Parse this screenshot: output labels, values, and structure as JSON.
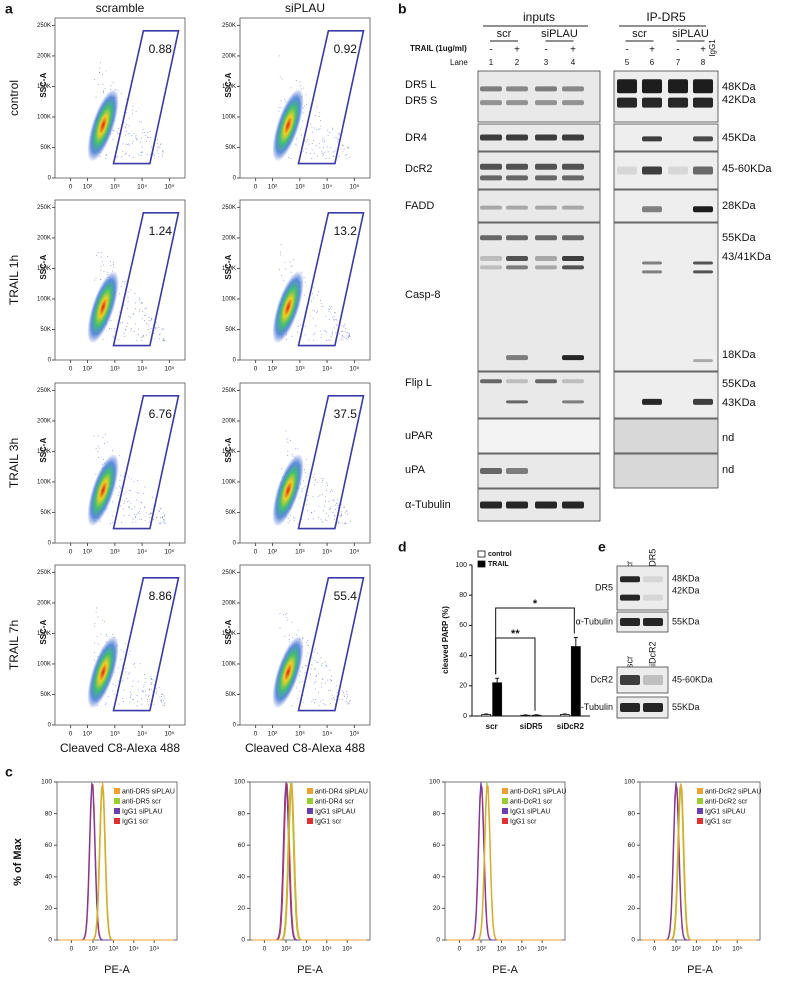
{
  "panel_labels": [
    "a",
    "b",
    "c",
    "d",
    "e"
  ],
  "flow": {
    "columns": [
      "scramble",
      "siPLAU"
    ],
    "rows": [
      "control",
      "TRAIL 1h",
      "TRAIL 3h",
      "TRAIL 7h"
    ],
    "ylabel": "SSC-A",
    "xlabel": "Cleaved C8-Alexa 488",
    "ylim": [
      0,
      262144
    ],
    "yticks": [
      0,
      {
        "value": 50000,
        "label": "50K"
      },
      {
        "value": 100000,
        "label": "100K"
      },
      {
        "value": 150000,
        "label": "150K"
      },
      {
        "value": 200000,
        "label": "200K"
      },
      {
        "value": 250000,
        "label": "250K"
      }
    ],
    "xticks": [
      0,
      {
        "value": 100,
        "label": "10²"
      },
      {
        "value": 1000,
        "label": "10³"
      },
      {
        "value": 10000,
        "label": "10⁴"
      },
      {
        "value": 100000,
        "label": "10⁵"
      }
    ],
    "gates": [
      [
        0.88,
        0.92
      ],
      [
        1.24,
        13.2
      ],
      [
        6.76,
        37.5
      ],
      [
        8.86,
        55.4
      ]
    ]
  },
  "blot_b": {
    "groups": [
      "inputs",
      "IP-DR5"
    ],
    "conditions": [
      "scr",
      "siPLAU",
      "scr",
      "siPLAU"
    ],
    "treatment_label": "TRAIL (1ug/ml)",
    "treatment": [
      "-",
      "+",
      "-",
      "+",
      "-",
      "+",
      "-",
      "+"
    ],
    "lane_label": "Lane",
    "lanes": [
      1,
      2,
      3,
      4,
      5,
      6,
      7,
      8
    ],
    "control_lane": "IgG1",
    "rows": [
      {
        "labels": [
          "DR5 L",
          "DR5 S"
        ],
        "sizes": [
          "48KDa",
          "42KDa"
        ]
      },
      {
        "labels": [
          "DR4"
        ],
        "sizes": [
          "45KDa"
        ]
      },
      {
        "labels": [
          "DcR2"
        ],
        "sizes": [
          "45-60KDa"
        ]
      },
      {
        "labels": [
          "FADD"
        ],
        "sizes": [
          "28KDa"
        ]
      },
      {
        "labels": [
          "Casp-8"
        ],
        "sizes": [
          "55KDa",
          "43/41KDa",
          "18KDa"
        ]
      },
      {
        "labels": [
          "Flip L"
        ],
        "sizes": [
          "55KDa",
          "43KDa"
        ]
      },
      {
        "labels": [
          "uPAR"
        ],
        "sizes": [
          "nd"
        ]
      },
      {
        "labels": [
          "uPA"
        ],
        "sizes": [
          "nd"
        ]
      },
      {
        "labels": [
          "α-Tubulin"
        ],
        "sizes": []
      }
    ]
  },
  "chart_data": {
    "type": "bar",
    "ylabel": "cleaved PARP (%)",
    "categories": [
      "scr",
      "siDR5",
      "siDcR2"
    ],
    "series": [
      {
        "name": "control",
        "color": "#ffffff",
        "values": [
          1,
          0.5,
          1
        ],
        "errors": [
          0.3,
          0.2,
          0.3
        ]
      },
      {
        "name": "TRAIL",
        "color": "#000000",
        "values": [
          22,
          0.5,
          46
        ],
        "errors": [
          3,
          0.3,
          6
        ]
      }
    ],
    "ylim": [
      0,
      100
    ],
    "yticks": [
      0,
      20,
      40,
      60,
      80,
      100
    ],
    "annotations": [
      "**",
      "*"
    ],
    "legend": "top-left"
  },
  "blot_e": [
    {
      "lanes": [
        "scr",
        "siDR5"
      ],
      "rows": [
        {
          "label": "DR5",
          "sizes": [
            "48KDa",
            "42KDa"
          ]
        },
        {
          "label": "α-Tubulin",
          "sizes": [
            "55KDa"
          ]
        }
      ]
    },
    {
      "lanes": [
        "scr",
        "siDcR2"
      ],
      "rows": [
        {
          "label": "DcR2",
          "sizes": [
            "45-60KDa"
          ]
        },
        {
          "label": "α-Tubulin",
          "sizes": [
            "55KDa"
          ]
        }
      ]
    }
  ],
  "histograms": {
    "ylabel": "% of Max",
    "xlabel": "PE-A",
    "ylim": [
      0,
      100
    ],
    "yticks": [
      0,
      20,
      40,
      60,
      80,
      100
    ],
    "xticks": [
      0,
      {
        "value": 100,
        "label": "10²"
      },
      {
        "value": 1000,
        "label": "10³"
      },
      {
        "value": 10000,
        "label": "10⁴"
      },
      {
        "value": 100000,
        "label": "10⁵"
      }
    ],
    "plots": [
      {
        "series": [
          {
            "name": "anti-DR5 siPLAU",
            "color": "#f0a030",
            "peak": 300
          },
          {
            "name": "anti-DR5 scr",
            "color": "#9acd32",
            "peak": 280
          },
          {
            "name": "IgG1 siPLAU",
            "color": "#6a3fb0",
            "peak": 90
          },
          {
            "name": "IgG1 scr",
            "color": "#e03030",
            "peak": 95
          }
        ]
      },
      {
        "series": [
          {
            "name": "anti-DR4 siPLAU",
            "color": "#f0a030",
            "peak": 190
          },
          {
            "name": "anti-DR4 scr",
            "color": "#9acd32",
            "peak": 170
          },
          {
            "name": "IgG1 siPLAU",
            "color": "#6a3fb0",
            "peak": 100
          },
          {
            "name": "IgG1 scr",
            "color": "#e03030",
            "peak": 110
          }
        ]
      },
      {
        "series": [
          {
            "name": "anti-DcR1 siPLAU",
            "color": "#f0a030",
            "peak": 210
          },
          {
            "name": "anti-DcR1 scr",
            "color": "#9acd32",
            "peak": 200
          },
          {
            "name": "IgG1 siPLAU",
            "color": "#6a3fb0",
            "peak": 100
          },
          {
            "name": "IgG1 scr",
            "color": "#e03030",
            "peak": 105
          }
        ]
      },
      {
        "series": [
          {
            "name": "anti-DcR2 siPLAU",
            "color": "#f0a030",
            "peak": 180
          },
          {
            "name": "anti-DcR2 scr",
            "color": "#9acd32",
            "peak": 165
          },
          {
            "name": "IgG1 siPLAU",
            "color": "#6a3fb0",
            "peak": 100
          },
          {
            "name": "IgG1 scr",
            "color": "#e03030",
            "peak": 105
          }
        ]
      }
    ]
  }
}
